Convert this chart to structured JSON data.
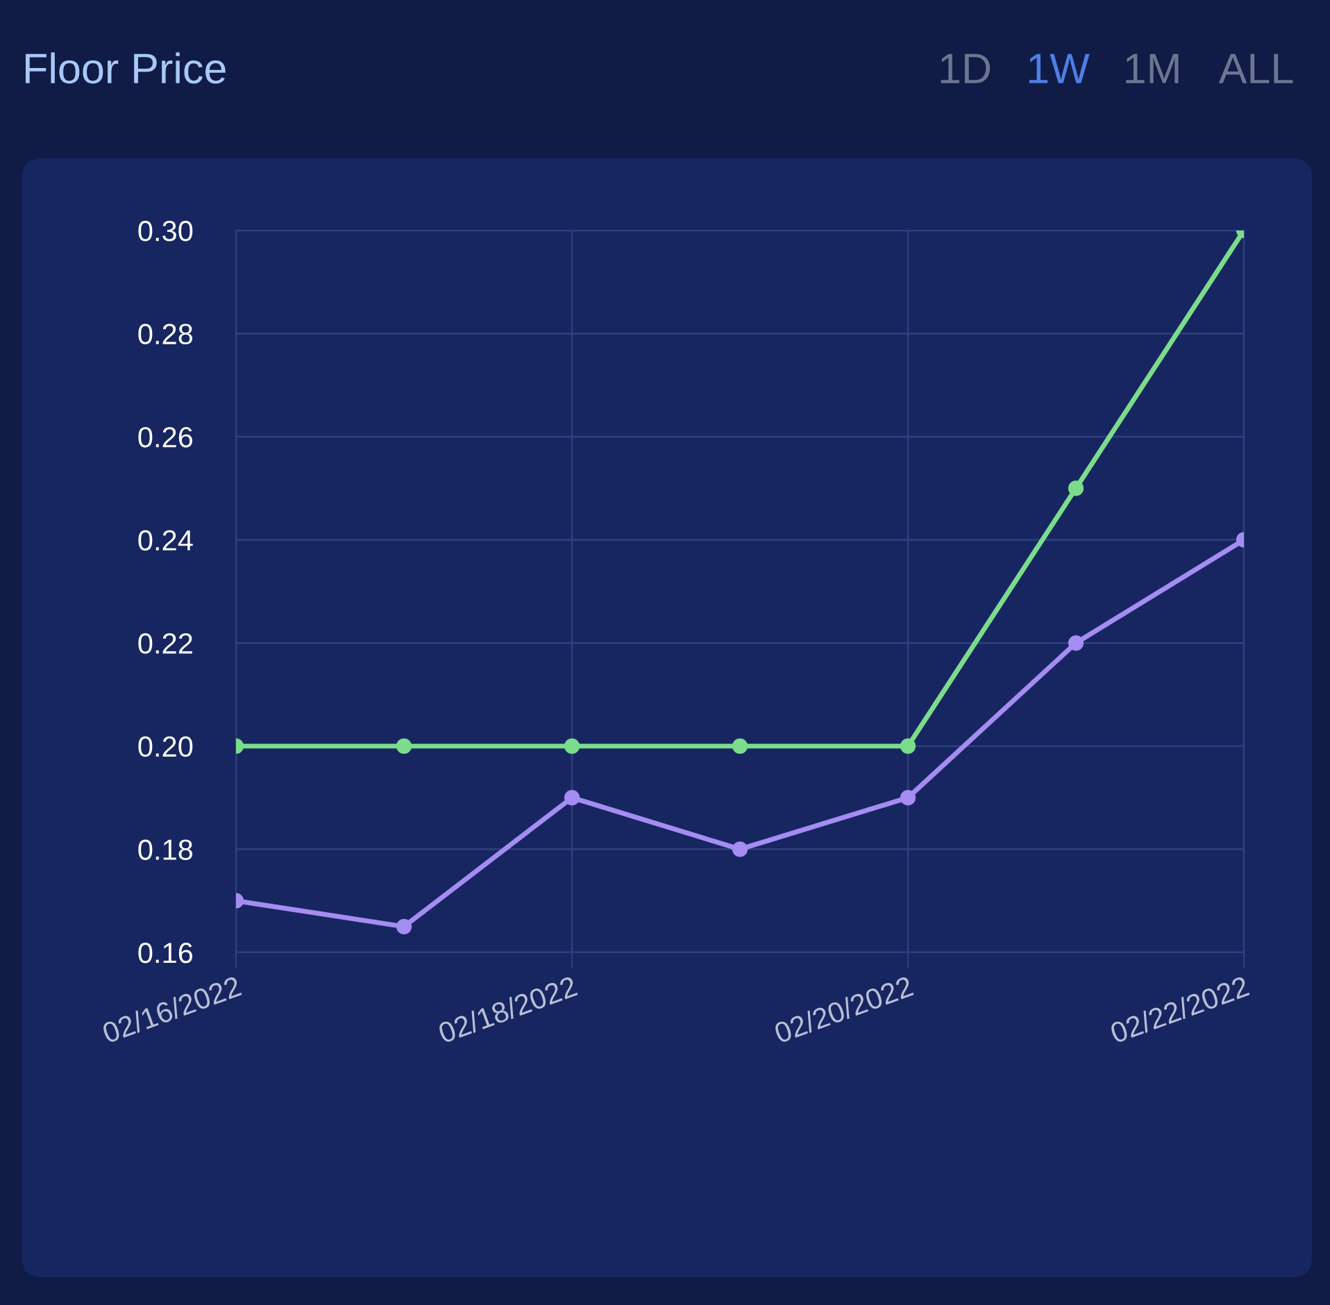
{
  "chart_data": {
    "type": "line",
    "title": "Floor Price",
    "annotations": [
      "1D",
      "1W",
      "1M",
      "ALL"
    ],
    "x": [
      "2022-02-16",
      "2022-02-17",
      "2022-02-18",
      "2022-02-19",
      "2022-02-20",
      "2022-02-21",
      "2022-02-22"
    ],
    "series": [
      {
        "color": "#a58cf2",
        "values": [
          0.17,
          0.165,
          0.19,
          0.18,
          0.19,
          0.22,
          0.24
        ]
      },
      {
        "color": "#7bdc8b",
        "values": [
          0.2,
          0.2,
          0.2,
          0.2,
          0.2,
          0.25,
          0.3
        ]
      }
    ],
    "xlim": [
      "2022-02-16",
      "2022-02-22"
    ],
    "xticks": [
      {
        "value": "2022-02-16",
        "label": "02/16/2022"
      },
      {
        "value": "2022-02-18",
        "label": "02/18/2022"
      },
      {
        "value": "2022-02-20",
        "label": "02/20/2022"
      },
      {
        "value": "2022-02-22",
        "label": "02/22/2022"
      }
    ],
    "ylim": [
      0.16,
      0.3
    ],
    "yticks": [
      {
        "value": 0.16,
        "label": "0.16"
      },
      {
        "value": 0.18,
        "label": "0.18"
      },
      {
        "value": 0.2,
        "label": "0.20"
      },
      {
        "value": 0.22,
        "label": "0.22"
      },
      {
        "value": 0.24,
        "label": "0.24"
      },
      {
        "value": 0.26,
        "label": "0.26"
      },
      {
        "value": 0.28,
        "label": "0.28"
      },
      {
        "value": 0.3,
        "label": "0.30"
      }
    ],
    "grid": true,
    "marker": "circle",
    "line_style": "solid"
  }
}
